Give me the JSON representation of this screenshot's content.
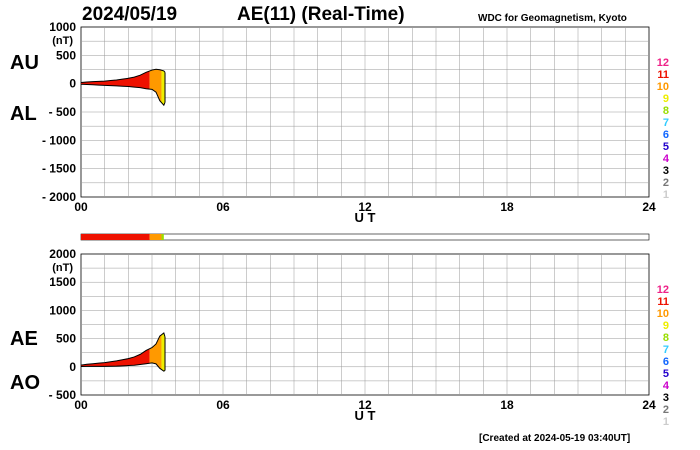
{
  "header": {
    "date": "2024/05/19",
    "title": "AE(11) (Real-Time)",
    "source": "WDC for Geomagnetism, Kyoto"
  },
  "footer": {
    "created": "[Created at 2024-05-19 03:40UT]"
  },
  "chart_data": [
    {
      "type": "area",
      "name": "AU/AL",
      "labels": {
        "upper": "AU",
        "lower": "AL"
      },
      "unit": "(nT)",
      "xlabel": "U T",
      "x_ticks": [
        "00",
        "06",
        "12",
        "18",
        "24"
      ],
      "y_ticks": [
        "1000",
        "500",
        "0",
        "- 500",
        "- 1000",
        "- 1500",
        "- 2000"
      ],
      "xlim": [
        0,
        24
      ],
      "ylim": [
        -2000,
        1000
      ],
      "series": [
        {
          "name": "AU",
          "x": [
            0,
            0.25,
            0.5,
            0.75,
            1.0,
            1.25,
            1.5,
            1.75,
            2.0,
            2.25,
            2.5,
            2.75,
            3.0,
            3.17,
            3.33,
            3.5,
            3.55
          ],
          "values": [
            20,
            30,
            35,
            40,
            45,
            55,
            65,
            80,
            95,
            115,
            150,
            200,
            240,
            255,
            245,
            225,
            200
          ]
        },
        {
          "name": "AL",
          "x": [
            0,
            0.25,
            0.5,
            0.75,
            1.0,
            1.25,
            1.5,
            1.75,
            2.0,
            2.25,
            2.5,
            2.75,
            3.0,
            3.17,
            3.33,
            3.5,
            3.55
          ],
          "values": [
            -10,
            -15,
            -20,
            -25,
            -30,
            -35,
            -40,
            -45,
            -50,
            -60,
            -70,
            -90,
            -100,
            -150,
            -300,
            -380,
            -330
          ]
        }
      ],
      "station_legend": [
        "12",
        "11",
        "10",
        "9",
        "8",
        "7",
        "6",
        "5",
        "4",
        "3",
        "2",
        "1"
      ]
    },
    {
      "type": "area",
      "name": "AE/AO",
      "labels": {
        "upper": "AE",
        "lower": "AO"
      },
      "unit": "(nT)",
      "xlabel": "U T",
      "x_ticks": [
        "00",
        "06",
        "12",
        "18",
        "24"
      ],
      "y_ticks": [
        "2000",
        "1500",
        "1000",
        "500",
        "0",
        "- 500"
      ],
      "xlim": [
        0,
        24
      ],
      "ylim": [
        -500,
        2000
      ],
      "series": [
        {
          "name": "AE",
          "x": [
            0,
            0.25,
            0.5,
            0.75,
            1.0,
            1.25,
            1.5,
            1.75,
            2.0,
            2.25,
            2.5,
            2.75,
            3.0,
            3.17,
            3.33,
            3.5,
            3.55
          ],
          "values": [
            30,
            45,
            55,
            65,
            75,
            90,
            105,
            125,
            145,
            175,
            220,
            290,
            340,
            405,
            545,
            600,
            530
          ]
        },
        {
          "name": "AO",
          "x": [
            0,
            0.25,
            0.5,
            0.75,
            1.0,
            1.25,
            1.5,
            1.75,
            2.0,
            2.25,
            2.5,
            2.75,
            3.0,
            3.17,
            3.33,
            3.5,
            3.55
          ],
          "values": [
            5,
            8,
            8,
            8,
            8,
            10,
            12,
            17,
            22,
            27,
            40,
            55,
            70,
            52,
            -27,
            -77,
            -65
          ]
        }
      ],
      "station_legend": [
        "12",
        "11",
        "10",
        "9",
        "8",
        "7",
        "6",
        "5",
        "4",
        "3",
        "2",
        "1"
      ]
    }
  ],
  "station_bar": {
    "segments": [
      {
        "from": 0,
        "to": 2.9,
        "stations": 11
      },
      {
        "from": 2.9,
        "to": 3.4,
        "stations": 10
      },
      {
        "from": 3.4,
        "to": 3.5,
        "stations": 8
      }
    ]
  },
  "station_colors": {
    "12": "#ee2288",
    "11": "#ee1100",
    "10": "#ff9900",
    "9": "#eeee00",
    "8": "#99dd00",
    "7": "#33ccff",
    "6": "#1166ff",
    "5": "#2200cc",
    "4": "#cc00cc",
    "3": "#000000",
    "2": "#777777",
    "1": "#cccccc"
  },
  "fill_bands": [
    {
      "from": 0,
      "to": 2.9,
      "color": "#ee1100"
    },
    {
      "from": 2.9,
      "to": 3.4,
      "color": "#ff9900"
    },
    {
      "from": 3.4,
      "to": 3.55,
      "color": "#eeee00"
    }
  ]
}
